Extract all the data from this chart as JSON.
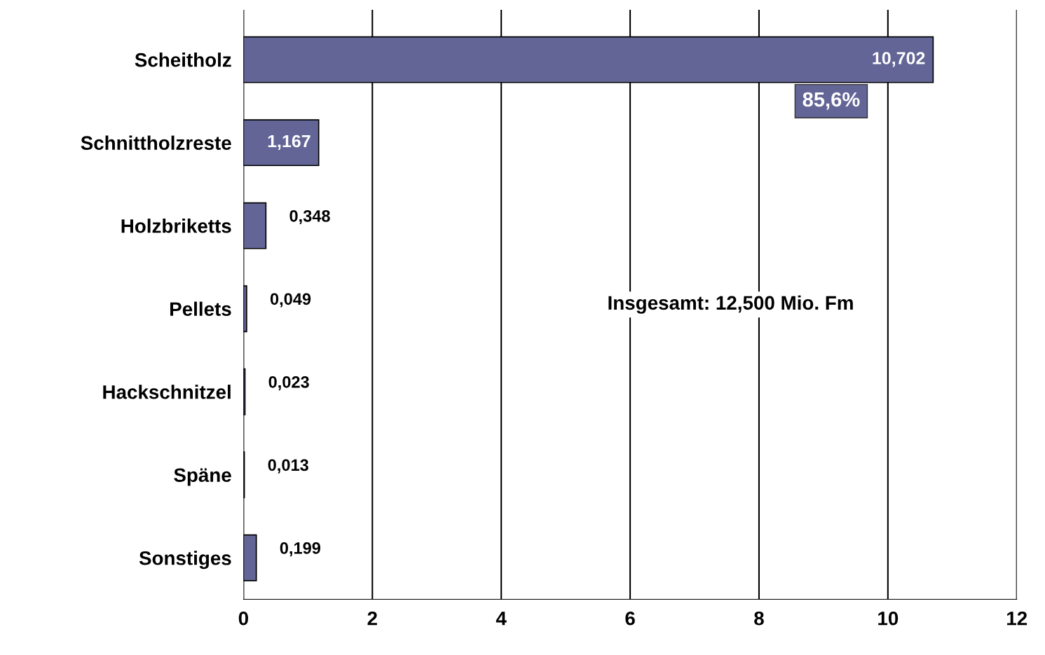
{
  "chart_data": {
    "type": "bar",
    "orientation": "horizontal",
    "categories": [
      "Scheitholz",
      "Schnittholzreste",
      "Holzbriketts",
      "Pellets",
      "Hackschnitzel",
      "Späne",
      "Sonstiges"
    ],
    "values": [
      10.702,
      1.167,
      0.348,
      0.049,
      0.023,
      0.013,
      0.199
    ],
    "value_labels": [
      "10,702",
      "1,167",
      "0,348",
      "0,049",
      "0,023",
      "0,013",
      "0,199"
    ],
    "color": "#636596",
    "xlim": [
      0,
      12
    ],
    "xticks": [
      0,
      2,
      4,
      6,
      8,
      10,
      12
    ],
    "grid": "x",
    "annotations": [
      "85,6%",
      "Insgesamt: 12,500 Mio. Fm"
    ]
  }
}
